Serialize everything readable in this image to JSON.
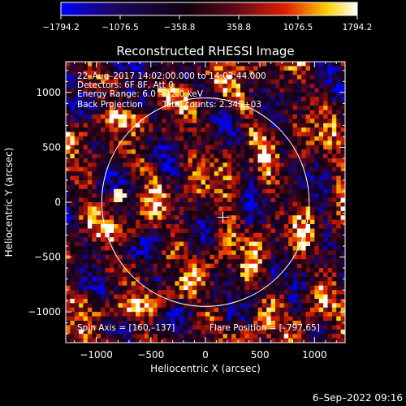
{
  "chart_data": {
    "type": "heatmap",
    "title": "Reconstructed RHESSI Image",
    "xlabel": "Heliocentric X (arcsec)",
    "ylabel": "Heliocentric Y (arcsec)",
    "xlim": [
      -1280,
      1280
    ],
    "ylim": [
      -1280,
      1280
    ],
    "xticks": [
      -1000,
      -500,
      0,
      500,
      1000
    ],
    "yticks": [
      -1000,
      -500,
      0,
      500,
      1000
    ],
    "xtick_labels": [
      "−1000",
      "−500",
      "0",
      "500",
      "1000"
    ],
    "ytick_labels": [
      "−1000",
      "−500",
      "0",
      "500",
      "1000"
    ],
    "colorbar": {
      "min": -1794.2,
      "max": 1794.2,
      "tick_values": [
        -1794.2,
        -1076.5,
        -358.8,
        358.8,
        1076.5,
        1794.2
      ],
      "tick_labels": [
        "−1794.2",
        "−1076.5",
        "−358.8",
        "358.8",
        "1076.5",
        "1794.2"
      ],
      "colors": [
        "#0000ff",
        "#1c0660",
        "#000000",
        "#5a0818",
        "#e02000",
        "#ffd000",
        "#ffffff"
      ]
    },
    "annotations": [
      "22–Aug–2017 14:02:00.000 to 14:03:44.000",
      "Detectors: 6F 8F, Att 0",
      "Energy Range: 6.0 – 12.0 keV",
      "Back Projection",
      "Total counts: 2.34E+03",
      "Spin Axis = [160,–137]",
      "Flare Position = [–797,65]"
    ],
    "solar_limb_radius": 950,
    "spin_axis": [
      160,
      -137
    ],
    "flare_position": [
      -797,
      65
    ],
    "timestamp": "6–Sep–2022 09:16"
  }
}
